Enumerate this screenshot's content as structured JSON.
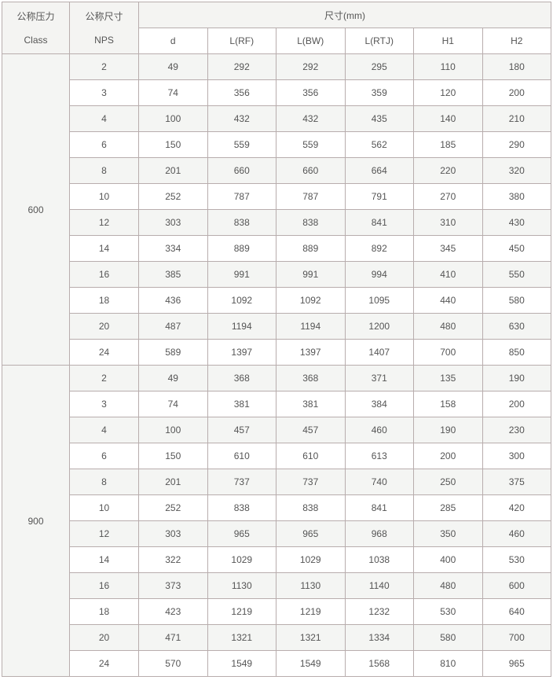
{
  "header": {
    "class_cn": "公称压力",
    "class_en": "Class",
    "nps_cn": "公称尺寸",
    "nps_en": "NPS",
    "dims": "尺寸(mm)",
    "cols": [
      "d",
      "L(RF)",
      "L(BW)",
      "L(RTJ)",
      "H1",
      "H2"
    ]
  },
  "groups": [
    {
      "class": "600",
      "rows": [
        [
          "2",
          "49",
          "292",
          "292",
          "295",
          "110",
          "180"
        ],
        [
          "3",
          "74",
          "356",
          "356",
          "359",
          "120",
          "200"
        ],
        [
          "4",
          "100",
          "432",
          "432",
          "435",
          "140",
          "210"
        ],
        [
          "6",
          "150",
          "559",
          "559",
          "562",
          "185",
          "290"
        ],
        [
          "8",
          "201",
          "660",
          "660",
          "664",
          "220",
          "320"
        ],
        [
          "10",
          "252",
          "787",
          "787",
          "791",
          "270",
          "380"
        ],
        [
          "12",
          "303",
          "838",
          "838",
          "841",
          "310",
          "430"
        ],
        [
          "14",
          "334",
          "889",
          "889",
          "892",
          "345",
          "450"
        ],
        [
          "16",
          "385",
          "991",
          "991",
          "994",
          "410",
          "550"
        ],
        [
          "18",
          "436",
          "1092",
          "1092",
          "1095",
          "440",
          "580"
        ],
        [
          "20",
          "487",
          "1194",
          "1194",
          "1200",
          "480",
          "630"
        ],
        [
          "24",
          "589",
          "1397",
          "1397",
          "1407",
          "700",
          "850"
        ]
      ]
    },
    {
      "class": "900",
      "rows": [
        [
          "2",
          "49",
          "368",
          "368",
          "371",
          "135",
          "190"
        ],
        [
          "3",
          "74",
          "381",
          "381",
          "384",
          "158",
          "200"
        ],
        [
          "4",
          "100",
          "457",
          "457",
          "460",
          "190",
          "230"
        ],
        [
          "6",
          "150",
          "610",
          "610",
          "613",
          "200",
          "300"
        ],
        [
          "8",
          "201",
          "737",
          "737",
          "740",
          "250",
          "375"
        ],
        [
          "10",
          "252",
          "838",
          "838",
          "841",
          "285",
          "420"
        ],
        [
          "12",
          "303",
          "965",
          "965",
          "968",
          "350",
          "460"
        ],
        [
          "14",
          "322",
          "1029",
          "1029",
          "1038",
          "400",
          "530"
        ],
        [
          "16",
          "373",
          "1130",
          "1130",
          "1140",
          "480",
          "600"
        ],
        [
          "18",
          "423",
          "1219",
          "1219",
          "1232",
          "530",
          "640"
        ],
        [
          "20",
          "471",
          "1321",
          "1321",
          "1334",
          "580",
          "700"
        ],
        [
          "24",
          "570",
          "1549",
          "1549",
          "1568",
          "810",
          "965"
        ]
      ]
    }
  ]
}
